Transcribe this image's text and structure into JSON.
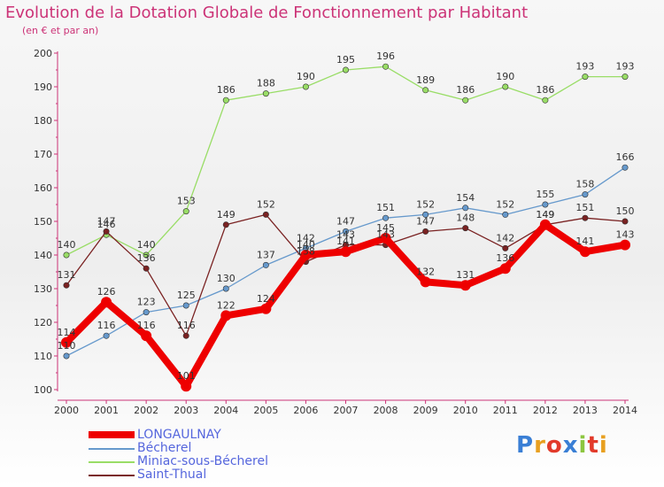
{
  "title": "Evolution de la Dotation Globale de Fonctionnement par Habitant",
  "subtitle": "(en € et par an)",
  "brand": {
    "text": "Proxiti",
    "letter_colors": [
      "#3a7fd5",
      "#e8a020",
      "#e23a2a",
      "#3a7fd5",
      "#8cc63f",
      "#e23a2a",
      "#e8a020"
    ]
  },
  "chart_data": {
    "type": "line",
    "title": "Evolution de la Dotation Globale de Fonctionnement par Habitant",
    "subtitle": "(en € et par an)",
    "xlabel": "",
    "ylabel": "",
    "x": [
      "2000",
      "2001",
      "2002",
      "2003",
      "2004",
      "2005",
      "2006",
      "2007",
      "2008",
      "2009",
      "2010",
      "2011",
      "2012",
      "2013",
      "2014"
    ],
    "y_ticks": [
      "100",
      "110",
      "120",
      "130",
      "140",
      "150",
      "160",
      "170",
      "180",
      "190",
      "200"
    ],
    "ylim": [
      100,
      200
    ],
    "grid": false,
    "legend_position": "bottom-left",
    "series": [
      {
        "name": "LONGAULNAY",
        "color": "#ee0000",
        "emphasis": true,
        "values": [
          114,
          126,
          116,
          101,
          122,
          124,
          140,
          141,
          145,
          132,
          131,
          136,
          149,
          141,
          143
        ],
        "labels": [
          "114",
          "126",
          "116",
          "101",
          "122",
          "124",
          "140",
          "141",
          "145",
          "132",
          "131",
          "136",
          "149",
          "141",
          "143"
        ]
      },
      {
        "name": "Bécherel",
        "color": "#6699cc",
        "emphasis": false,
        "values": [
          110,
          116,
          123,
          125,
          130,
          137,
          142,
          147,
          151,
          152,
          154,
          152,
          155,
          158,
          166
        ],
        "labels": [
          "110",
          "116",
          "123",
          "125",
          "130",
          "137",
          "142",
          "147",
          "151",
          "152",
          "154",
          "152",
          "155",
          "158",
          "166"
        ]
      },
      {
        "name": "Miniac-sous-Bécherel",
        "color": "#99dd66",
        "emphasis": false,
        "values": [
          140,
          146,
          140,
          153,
          186,
          188,
          190,
          195,
          196,
          189,
          186,
          190,
          186,
          193,
          193
        ],
        "labels": [
          "140",
          "146",
          "140",
          "153",
          "186",
          "188",
          "190",
          "195",
          "196",
          "189",
          "186",
          "190",
          "186",
          "193",
          "193"
        ]
      },
      {
        "name": "Saint-Thual",
        "color": "#7a2222",
        "emphasis": false,
        "values": [
          131,
          147,
          136,
          116,
          149,
          152,
          138,
          143,
          143,
          147,
          148,
          142,
          149,
          151,
          150
        ],
        "labels": [
          "131",
          "147",
          "136",
          "116",
          "149",
          "152",
          "138",
          "143",
          "143",
          "147",
          "148",
          "142",
          "149",
          "151",
          "150"
        ]
      }
    ]
  }
}
